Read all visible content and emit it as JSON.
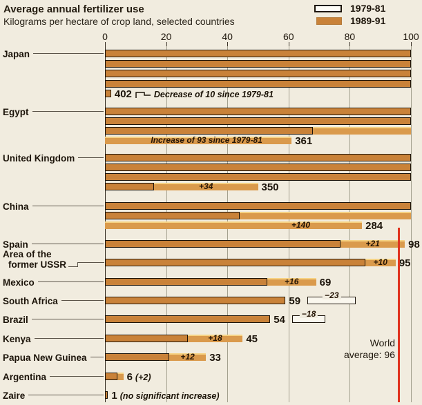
{
  "chart_data": {
    "type": "bar",
    "title": "Average annual fertilizer use",
    "subtitle": "Kilograms per hectare of crop land, selected countries",
    "legend": [
      {
        "label": "1979-81",
        "swatch": "outline-white"
      },
      {
        "label": "1989-91",
        "swatch": "orange-fill"
      }
    ],
    "x_axis": {
      "min": 0,
      "max": 100,
      "ticks": [
        0,
        20,
        40,
        60,
        80,
        100
      ],
      "wrap_every": 100
    },
    "world_average": {
      "value": 96,
      "lines": [
        "World",
        "average: 96"
      ]
    },
    "colors": {
      "bar_orange": "#c98239",
      "bar_orange_light": "#da9a4c",
      "background": "#f1ecdf",
      "world_average_line": "#e0331f",
      "outline": "#1c140a"
    },
    "countries": [
      {
        "name": "Japan",
        "label_lines": [
          "Japan"
        ],
        "value_1989_91": 402,
        "value_1979_81": 412,
        "value_label": "402",
        "change_label": "Decrease of 10 since 1979-81",
        "change_type": "bracket_note"
      },
      {
        "name": "Egypt",
        "label_lines": [
          "Egypt"
        ],
        "value_1989_91": 361,
        "value_1979_81": 268,
        "value_label": "361",
        "change_label": "Increase of 93 since 1979-81",
        "change_type": "note_inside"
      },
      {
        "name": "United Kingdom",
        "label_lines": [
          "United Kingdom"
        ],
        "value_1989_91": 350,
        "value_1979_81": 316,
        "value_label": "350",
        "change_label": "+34",
        "change_type": "plus_inside"
      },
      {
        "name": "China",
        "label_lines": [
          "China"
        ],
        "value_1989_91": 284,
        "value_1979_81": 144,
        "value_label": "284",
        "change_label": "+140",
        "change_type": "plus_inside"
      },
      {
        "name": "Spain",
        "label_lines": [
          "Spain"
        ],
        "value_1989_91": 98,
        "value_1979_81": 77,
        "value_label": "98",
        "change_label": "+21",
        "change_type": "plus_inside"
      },
      {
        "name": "Area of the former USSR",
        "label_lines": [
          "Area of the",
          "former USSR"
        ],
        "value_1989_91": 95,
        "value_1979_81": 85,
        "value_label": "95",
        "change_label": "+10",
        "change_type": "plus_inside"
      },
      {
        "name": "Mexico",
        "label_lines": [
          "Mexico"
        ],
        "value_1989_91": 69,
        "value_1979_81": 53,
        "value_label": "69",
        "change_label": "+16",
        "change_type": "plus_inside"
      },
      {
        "name": "South Africa",
        "label_lines": [
          "South Africa"
        ],
        "value_1989_91": 59,
        "value_1979_81": 82,
        "value_label": "59",
        "change_label": "−23",
        "change_type": "minus_box"
      },
      {
        "name": "Brazil",
        "label_lines": [
          "Brazil"
        ],
        "value_1989_91": 54,
        "value_1979_81": 72,
        "value_label": "54",
        "change_label": "−18",
        "change_type": "minus_box"
      },
      {
        "name": "Kenya",
        "label_lines": [
          "Kenya"
        ],
        "value_1989_91": 45,
        "value_1979_81": 27,
        "value_label": "45",
        "change_label": "+18",
        "change_type": "plus_inside"
      },
      {
        "name": "Papua New Guinea",
        "label_lines": [
          "Papua New Guinea"
        ],
        "value_1989_91": 33,
        "value_1979_81": 21,
        "value_label": "33",
        "change_label": "+12",
        "change_type": "plus_inside"
      },
      {
        "name": "Argentina",
        "label_lines": [
          "Argentina"
        ],
        "value_1989_91": 6,
        "value_1979_81": 4,
        "value_label": "6",
        "change_label": "(+2)",
        "change_type": "note_after"
      },
      {
        "name": "Zaire",
        "label_lines": [
          "Zaire"
        ],
        "value_1989_91": 1,
        "value_1979_81": null,
        "value_label": "1",
        "change_label": "(no significant increase)",
        "change_type": "note_after"
      }
    ]
  }
}
